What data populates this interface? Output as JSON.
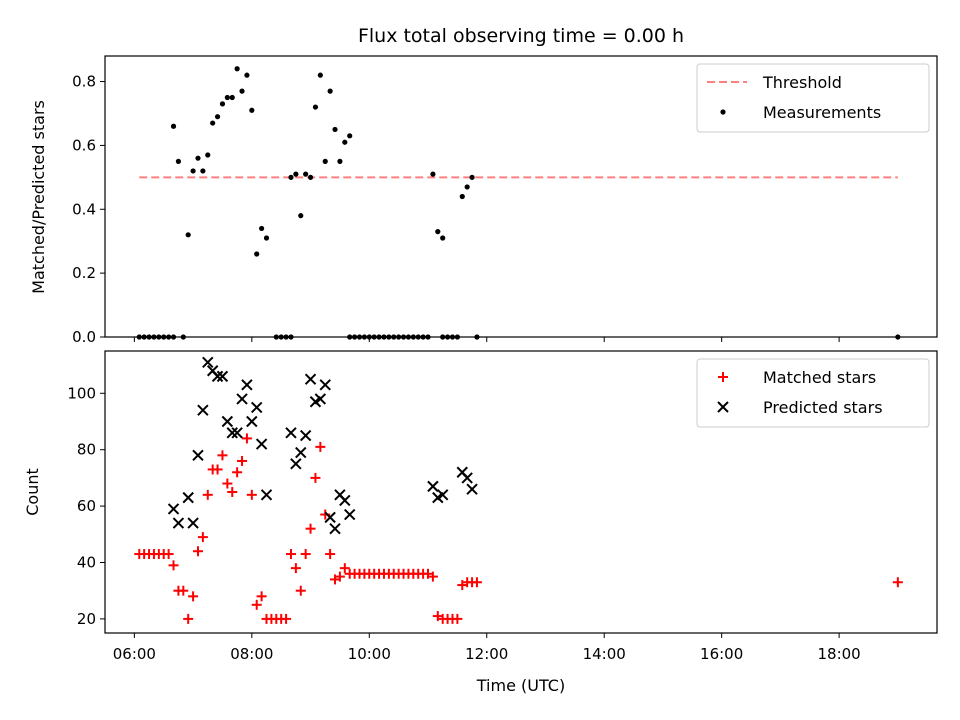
{
  "chart_data": [
    {
      "type": "scatter",
      "title": "Flux total observing time = 0.00 h",
      "ylabel": "Matched/Predicted stars",
      "xlim": [
        "05:30",
        "19:40"
      ],
      "ylim": [
        0,
        0.88
      ],
      "x_ticks": [
        "06:00",
        "08:00",
        "10:00",
        "12:00",
        "14:00",
        "16:00",
        "18:00"
      ],
      "y_ticks": [
        "0.0",
        "0.2",
        "0.4",
        "0.6",
        "0.8"
      ],
      "legend_position": "top-right",
      "threshold": {
        "name": "Threshold",
        "value": 0.5,
        "x_start": "06:05",
        "x_end": "19:00",
        "color": "#ff7f7f",
        "style": "dashed"
      },
      "series": [
        {
          "name": "Measurements",
          "color": "#000000",
          "marker": "dot",
          "points": [
            [
              "06:05",
              0
            ],
            [
              "06:10",
              0
            ],
            [
              "06:15",
              0
            ],
            [
              "06:20",
              0
            ],
            [
              "06:25",
              0
            ],
            [
              "06:30",
              0
            ],
            [
              "06:35",
              0
            ],
            [
              "06:40",
              0
            ],
            [
              "06:50",
              0
            ],
            [
              "06:40",
              0.66
            ],
            [
              "06:45",
              0.55
            ],
            [
              "06:55",
              0.32
            ],
            [
              "07:00",
              0.52
            ],
            [
              "07:05",
              0.56
            ],
            [
              "07:10",
              0.52
            ],
            [
              "07:15",
              0.57
            ],
            [
              "07:20",
              0.67
            ],
            [
              "07:25",
              0.69
            ],
            [
              "07:30",
              0.73
            ],
            [
              "07:35",
              0.75
            ],
            [
              "07:40",
              0.75
            ],
            [
              "07:45",
              0.84
            ],
            [
              "07:50",
              0.77
            ],
            [
              "07:55",
              0.82
            ],
            [
              "08:00",
              0.71
            ],
            [
              "08:05",
              0.26
            ],
            [
              "08:10",
              0.34
            ],
            [
              "08:15",
              0.31
            ],
            [
              "08:25",
              0
            ],
            [
              "08:30",
              0
            ],
            [
              "08:35",
              0
            ],
            [
              "08:40",
              0
            ],
            [
              "08:40",
              0.5
            ],
            [
              "08:45",
              0.51
            ],
            [
              "08:50",
              0.38
            ],
            [
              "08:55",
              0.51
            ],
            [
              "09:00",
              0.5
            ],
            [
              "09:05",
              0.72
            ],
            [
              "09:10",
              0.82
            ],
            [
              "09:15",
              0.55
            ],
            [
              "09:20",
              0.77
            ],
            [
              "09:25",
              0.65
            ],
            [
              "09:30",
              0.55
            ],
            [
              "09:35",
              0.61
            ],
            [
              "09:40",
              0.63
            ],
            [
              "09:40",
              0
            ],
            [
              "09:45",
              0
            ],
            [
              "09:50",
              0
            ],
            [
              "09:55",
              0
            ],
            [
              "10:00",
              0
            ],
            [
              "10:05",
              0
            ],
            [
              "10:10",
              0
            ],
            [
              "10:15",
              0
            ],
            [
              "10:20",
              0
            ],
            [
              "10:25",
              0
            ],
            [
              "10:30",
              0
            ],
            [
              "10:35",
              0
            ],
            [
              "10:40",
              0
            ],
            [
              "10:45",
              0
            ],
            [
              "10:50",
              0
            ],
            [
              "10:55",
              0
            ],
            [
              "11:00",
              0
            ],
            [
              "11:05",
              0.51
            ],
            [
              "11:10",
              0.33
            ],
            [
              "11:15",
              0.31
            ],
            [
              "11:15",
              0
            ],
            [
              "11:20",
              0
            ],
            [
              "11:25",
              0
            ],
            [
              "11:30",
              0
            ],
            [
              "11:35",
              0.44
            ],
            [
              "11:40",
              0.47
            ],
            [
              "11:45",
              0.5
            ],
            [
              "11:50",
              0
            ],
            [
              "19:00",
              0
            ]
          ]
        }
      ]
    },
    {
      "type": "scatter",
      "xlabel": "Time (UTC)",
      "ylabel": "Count",
      "xlim": [
        "05:30",
        "19:40"
      ],
      "ylim": [
        15,
        115
      ],
      "x_ticks": [
        "06:00",
        "08:00",
        "10:00",
        "12:00",
        "14:00",
        "16:00",
        "18:00"
      ],
      "y_ticks": [
        "20",
        "40",
        "60",
        "80",
        "100"
      ],
      "legend_position": "top-right",
      "series": [
        {
          "name": "Matched stars",
          "color": "#ff0000",
          "marker": "plus",
          "points": [
            [
              "06:05",
              43
            ],
            [
              "06:10",
              43
            ],
            [
              "06:15",
              43
            ],
            [
              "06:20",
              43
            ],
            [
              "06:25",
              43
            ],
            [
              "06:30",
              43
            ],
            [
              "06:35",
              43
            ],
            [
              "06:40",
              39
            ],
            [
              "06:45",
              30
            ],
            [
              "06:50",
              30
            ],
            [
              "06:55",
              20
            ],
            [
              "07:00",
              28
            ],
            [
              "07:05",
              44
            ],
            [
              "07:10",
              49
            ],
            [
              "07:15",
              64
            ],
            [
              "07:20",
              73
            ],
            [
              "07:25",
              73
            ],
            [
              "07:30",
              78
            ],
            [
              "07:35",
              68
            ],
            [
              "07:40",
              65
            ],
            [
              "07:45",
              72
            ],
            [
              "07:50",
              76
            ],
            [
              "07:55",
              84
            ],
            [
              "08:00",
              64
            ],
            [
              "08:05",
              25
            ],
            [
              "08:10",
              28
            ],
            [
              "08:15",
              20
            ],
            [
              "08:20",
              20
            ],
            [
              "08:25",
              20
            ],
            [
              "08:30",
              20
            ],
            [
              "08:35",
              20
            ],
            [
              "08:40",
              43
            ],
            [
              "08:45",
              38
            ],
            [
              "08:50",
              30
            ],
            [
              "08:55",
              43
            ],
            [
              "09:00",
              52
            ],
            [
              "09:05",
              70
            ],
            [
              "09:10",
              81
            ],
            [
              "09:15",
              57
            ],
            [
              "09:20",
              43
            ],
            [
              "09:25",
              34
            ],
            [
              "09:30",
              35
            ],
            [
              "09:35",
              38
            ],
            [
              "09:40",
              36
            ],
            [
              "09:45",
              36
            ],
            [
              "09:50",
              36
            ],
            [
              "09:55",
              36
            ],
            [
              "10:00",
              36
            ],
            [
              "10:05",
              36
            ],
            [
              "10:10",
              36
            ],
            [
              "10:15",
              36
            ],
            [
              "10:20",
              36
            ],
            [
              "10:25",
              36
            ],
            [
              "10:30",
              36
            ],
            [
              "10:35",
              36
            ],
            [
              "10:40",
              36
            ],
            [
              "10:45",
              36
            ],
            [
              "10:50",
              36
            ],
            [
              "10:55",
              36
            ],
            [
              "11:00",
              36
            ],
            [
              "11:05",
              35
            ],
            [
              "11:10",
              21
            ],
            [
              "11:15",
              20
            ],
            [
              "11:20",
              20
            ],
            [
              "11:25",
              20
            ],
            [
              "11:30",
              20
            ],
            [
              "11:35",
              32
            ],
            [
              "11:40",
              33
            ],
            [
              "11:45",
              33
            ],
            [
              "11:50",
              33
            ],
            [
              "19:00",
              33
            ]
          ]
        },
        {
          "name": "Predicted stars",
          "color": "#000000",
          "marker": "x",
          "points": [
            [
              "06:40",
              59
            ],
            [
              "06:45",
              54
            ],
            [
              "06:55",
              63
            ],
            [
              "07:00",
              54
            ],
            [
              "07:05",
              78
            ],
            [
              "07:10",
              94
            ],
            [
              "07:15",
              111
            ],
            [
              "07:20",
              108
            ],
            [
              "07:25",
              106
            ],
            [
              "07:30",
              106
            ],
            [
              "07:35",
              90
            ],
            [
              "07:40",
              86
            ],
            [
              "07:45",
              86
            ],
            [
              "07:50",
              98
            ],
            [
              "07:55",
              103
            ],
            [
              "08:00",
              90
            ],
            [
              "08:05",
              95
            ],
            [
              "08:10",
              82
            ],
            [
              "08:15",
              64
            ],
            [
              "08:40",
              86
            ],
            [
              "08:45",
              75
            ],
            [
              "08:50",
              79
            ],
            [
              "08:55",
              85
            ],
            [
              "09:00",
              105
            ],
            [
              "09:05",
              97
            ],
            [
              "09:10",
              98
            ],
            [
              "09:15",
              103
            ],
            [
              "09:20",
              56
            ],
            [
              "09:25",
              52
            ],
            [
              "09:30",
              64
            ],
            [
              "09:35",
              62
            ],
            [
              "09:40",
              57
            ],
            [
              "11:05",
              67
            ],
            [
              "11:10",
              63
            ],
            [
              "11:15",
              64
            ],
            [
              "11:35",
              72
            ],
            [
              "11:40",
              70
            ],
            [
              "11:45",
              66
            ]
          ]
        }
      ]
    }
  ]
}
